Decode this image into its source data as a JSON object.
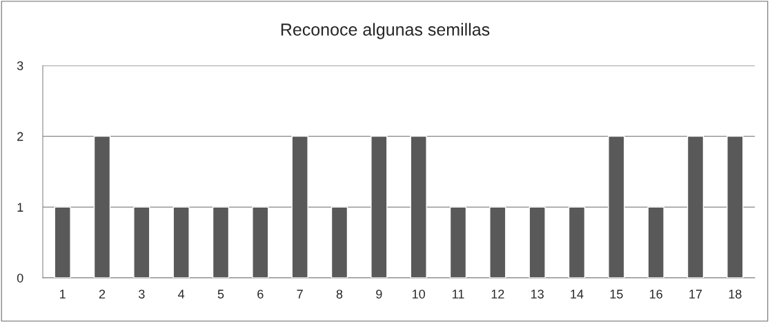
{
  "chart_data": {
    "type": "bar",
    "title": "Reconoce algunas semillas",
    "categories": [
      "1",
      "2",
      "3",
      "4",
      "5",
      "6",
      "7",
      "8",
      "9",
      "10",
      "11",
      "12",
      "13",
      "14",
      "15",
      "16",
      "17",
      "18"
    ],
    "values": [
      1,
      2,
      1,
      1,
      1,
      1,
      2,
      1,
      2,
      2,
      1,
      1,
      1,
      1,
      2,
      1,
      2,
      2
    ],
    "color": "#595959",
    "ylim": [
      0,
      3
    ],
    "yticks": [
      0,
      1,
      2,
      3
    ],
    "grid": "y"
  }
}
